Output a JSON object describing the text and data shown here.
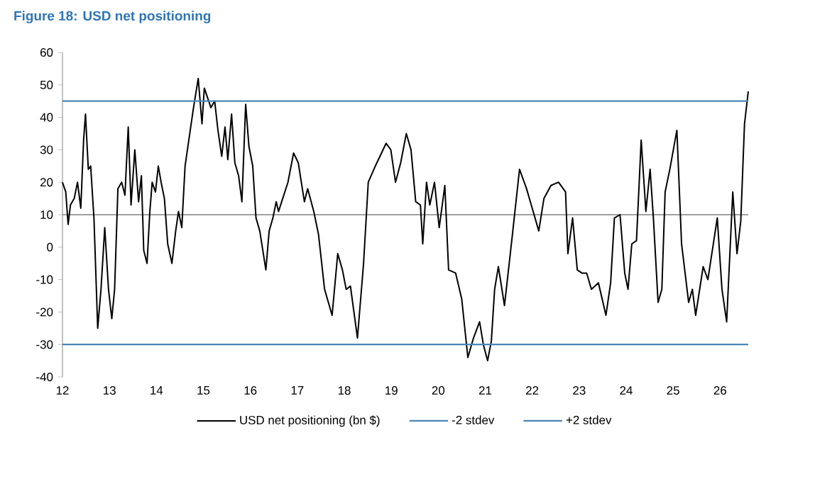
{
  "chart_data": {
    "type": "line",
    "title": "Figure 18: USD net positioning",
    "xlim": [
      12,
      26.6
    ],
    "xticks": [
      12,
      13,
      14,
      15,
      16,
      17,
      18,
      19,
      20,
      21,
      22,
      23,
      24,
      25,
      26
    ],
    "ylim": [
      -40,
      60
    ],
    "yticks": [
      -40,
      -30,
      -20,
      -10,
      0,
      10,
      20,
      30,
      40,
      50,
      60
    ],
    "legend": "bottom",
    "ref_lines": [
      {
        "axis": "y",
        "value": 10,
        "color": "#808080"
      }
    ],
    "series": [
      {
        "name": "USD net positioning (bn $)",
        "color": "#000000",
        "x": [
          12.0,
          12.07,
          12.12,
          12.17,
          12.25,
          12.32,
          12.39,
          12.45,
          12.49,
          12.55,
          12.6,
          12.67,
          12.75,
          12.82,
          12.9,
          12.98,
          13.05,
          13.11,
          13.18,
          13.26,
          13.33,
          13.4,
          13.46,
          13.54,
          13.62,
          13.68,
          13.73,
          13.8,
          13.86,
          13.91,
          13.98,
          14.04,
          14.1,
          14.17,
          14.24,
          14.33,
          14.41,
          14.47,
          14.54,
          14.61,
          14.69,
          14.79,
          14.89,
          14.97,
          15.02,
          15.09,
          15.16,
          15.24,
          15.31,
          15.39,
          15.46,
          15.52,
          15.6,
          15.67,
          15.75,
          15.82,
          15.9,
          15.97,
          16.05,
          16.12,
          16.2,
          16.33,
          16.4,
          16.48,
          16.55,
          16.6,
          16.8,
          16.92,
          17.02,
          17.15,
          17.22,
          17.35,
          17.45,
          17.58,
          17.74,
          17.86,
          17.96,
          18.04,
          18.13,
          18.28,
          18.41,
          18.51,
          18.66,
          18.76,
          18.89,
          18.99,
          19.09,
          19.2,
          19.32,
          19.42,
          19.52,
          19.62,
          19.67,
          19.75,
          19.82,
          19.92,
          20.02,
          20.14,
          20.22,
          20.37,
          20.5,
          20.63,
          20.75,
          20.88,
          20.96,
          21.05,
          21.13,
          21.2,
          21.28,
          21.41,
          21.58,
          21.73,
          21.88,
          21.98,
          22.14,
          22.25,
          22.4,
          22.56,
          22.71,
          22.76,
          22.86,
          22.96,
          23.06,
          23.16,
          23.26,
          23.41,
          23.57,
          23.67,
          23.75,
          23.87,
          23.97,
          24.04,
          24.12,
          24.22,
          24.32,
          24.42,
          24.51,
          24.58,
          24.68,
          24.76,
          24.83,
          24.93,
          25.08,
          25.18,
          25.33,
          25.41,
          25.48,
          25.64,
          25.74,
          25.94,
          26.04,
          26.14,
          26.27,
          26.36,
          26.44,
          26.52,
          26.6
        ],
        "values": [
          20,
          17,
          7,
          13,
          15,
          20,
          12,
          33,
          41,
          24,
          25,
          9,
          -25,
          -13,
          6,
          -13,
          -22,
          -13,
          18,
          20,
          16,
          37,
          13,
          30,
          14,
          22,
          -1,
          -5,
          11,
          20,
          17,
          25,
          20,
          15,
          1,
          -5,
          5,
          11,
          6,
          25,
          33,
          43,
          52,
          38,
          49,
          46,
          43,
          45,
          36,
          28,
          37,
          27,
          41,
          26,
          22,
          14,
          44,
          31,
          25,
          9,
          5,
          -7,
          5,
          9,
          14,
          11,
          20,
          29,
          26,
          14,
          18,
          11,
          4,
          -13,
          -21,
          -2,
          -7,
          -13,
          -12,
          -28,
          -5,
          20,
          25,
          28,
          32,
          30,
          20,
          26,
          35,
          30,
          14,
          13,
          1,
          20,
          13,
          20,
          6,
          19,
          -7,
          -8,
          -16,
          -34,
          -28,
          -23,
          -30,
          -35,
          -29,
          -13,
          -6,
          -18,
          4,
          24,
          18,
          13,
          5,
          15,
          19,
          20,
          17,
          -2,
          9,
          -7,
          -8,
          -8,
          -13,
          -11,
          -21,
          -11,
          9,
          10,
          -8,
          -13,
          1,
          2,
          33,
          11,
          24,
          9,
          -17,
          -13,
          17,
          24,
          36,
          1,
          -17,
          -13,
          -21,
          -6,
          -10,
          9,
          -13,
          -23,
          17,
          -2,
          8,
          38,
          48
        ]
      },
      {
        "name": "-2 stdev",
        "color": "#4a86b8",
        "x": [
          12,
          26.6
        ],
        "values": [
          -30,
          -30
        ]
      },
      {
        "name": "+2 stdev",
        "color": "#4a86b8",
        "x": [
          12,
          26.6
        ],
        "values": [
          45,
          45
        ]
      }
    ]
  }
}
